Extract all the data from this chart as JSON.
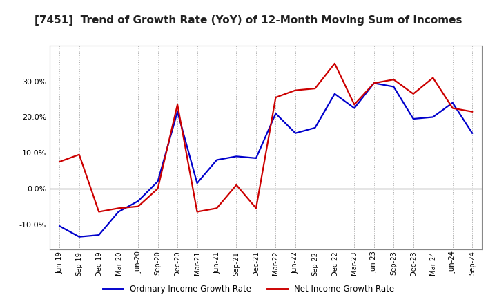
{
  "title": "[7451]  Trend of Growth Rate (YoY) of 12-Month Moving Sum of Incomes",
  "title_fontsize": 11,
  "background_color": "#ffffff",
  "plot_bg_color": "#ffffff",
  "grid_color": "#aaaaaa",
  "x_labels": [
    "Jun-19",
    "Sep-19",
    "Dec-19",
    "Mar-20",
    "Jun-20",
    "Sep-20",
    "Dec-20",
    "Mar-21",
    "Jun-21",
    "Sep-21",
    "Dec-21",
    "Mar-22",
    "Jun-22",
    "Sep-22",
    "Dec-22",
    "Mar-23",
    "Jun-23",
    "Sep-23",
    "Dec-23",
    "Mar-24",
    "Jun-24",
    "Sep-24"
  ],
  "ordinary_income": [
    -10.5,
    -13.5,
    -13.0,
    -6.5,
    -3.5,
    2.0,
    21.5,
    1.5,
    8.0,
    9.0,
    8.5,
    21.0,
    15.5,
    17.0,
    26.5,
    22.5,
    29.5,
    28.5,
    19.5,
    20.0,
    24.0,
    15.5
  ],
  "net_income": [
    7.5,
    9.5,
    -6.5,
    -5.5,
    -5.0,
    0.0,
    23.5,
    -6.5,
    -5.5,
    1.0,
    -5.5,
    25.5,
    27.5,
    28.0,
    35.0,
    23.5,
    29.5,
    30.5,
    26.5,
    31.0,
    22.5,
    21.5
  ],
  "ordinary_color": "#0000cc",
  "net_color": "#cc0000",
  "line_width": 1.6,
  "ylim": [
    -17,
    40
  ],
  "yticks": [
    -10.0,
    0.0,
    10.0,
    20.0,
    30.0
  ],
  "legend_ordinary": "Ordinary Income Growth Rate",
  "legend_net": "Net Income Growth Rate"
}
